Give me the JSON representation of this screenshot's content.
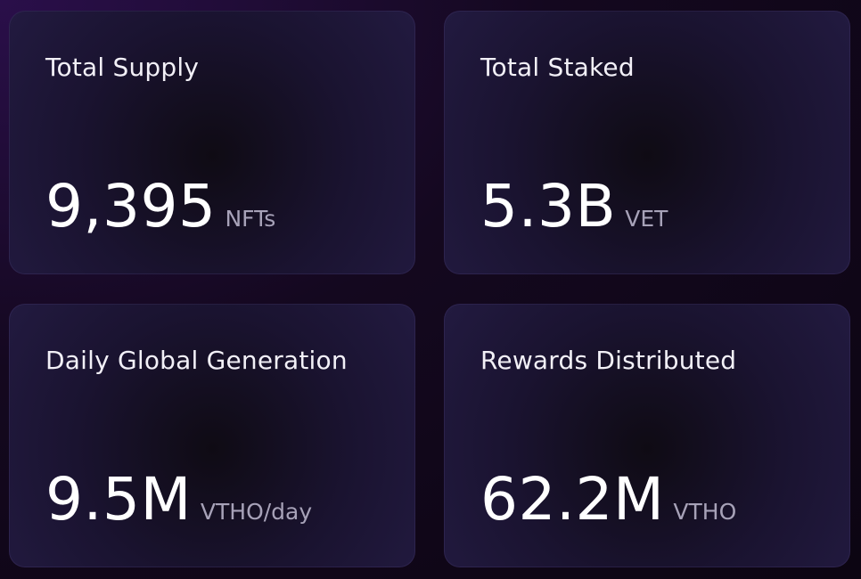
{
  "cards": [
    {
      "label": "Total Supply",
      "value": "9,395",
      "unit": "NFTs"
    },
    {
      "label": "Total Staked",
      "value": "5.3B",
      "unit": "VET"
    },
    {
      "label": "Daily Global Generation",
      "value": "9.5M",
      "unit": "VTHO/day"
    },
    {
      "label": "Rewards Distributed",
      "value": "62.2M",
      "unit": "VTHO"
    }
  ]
}
